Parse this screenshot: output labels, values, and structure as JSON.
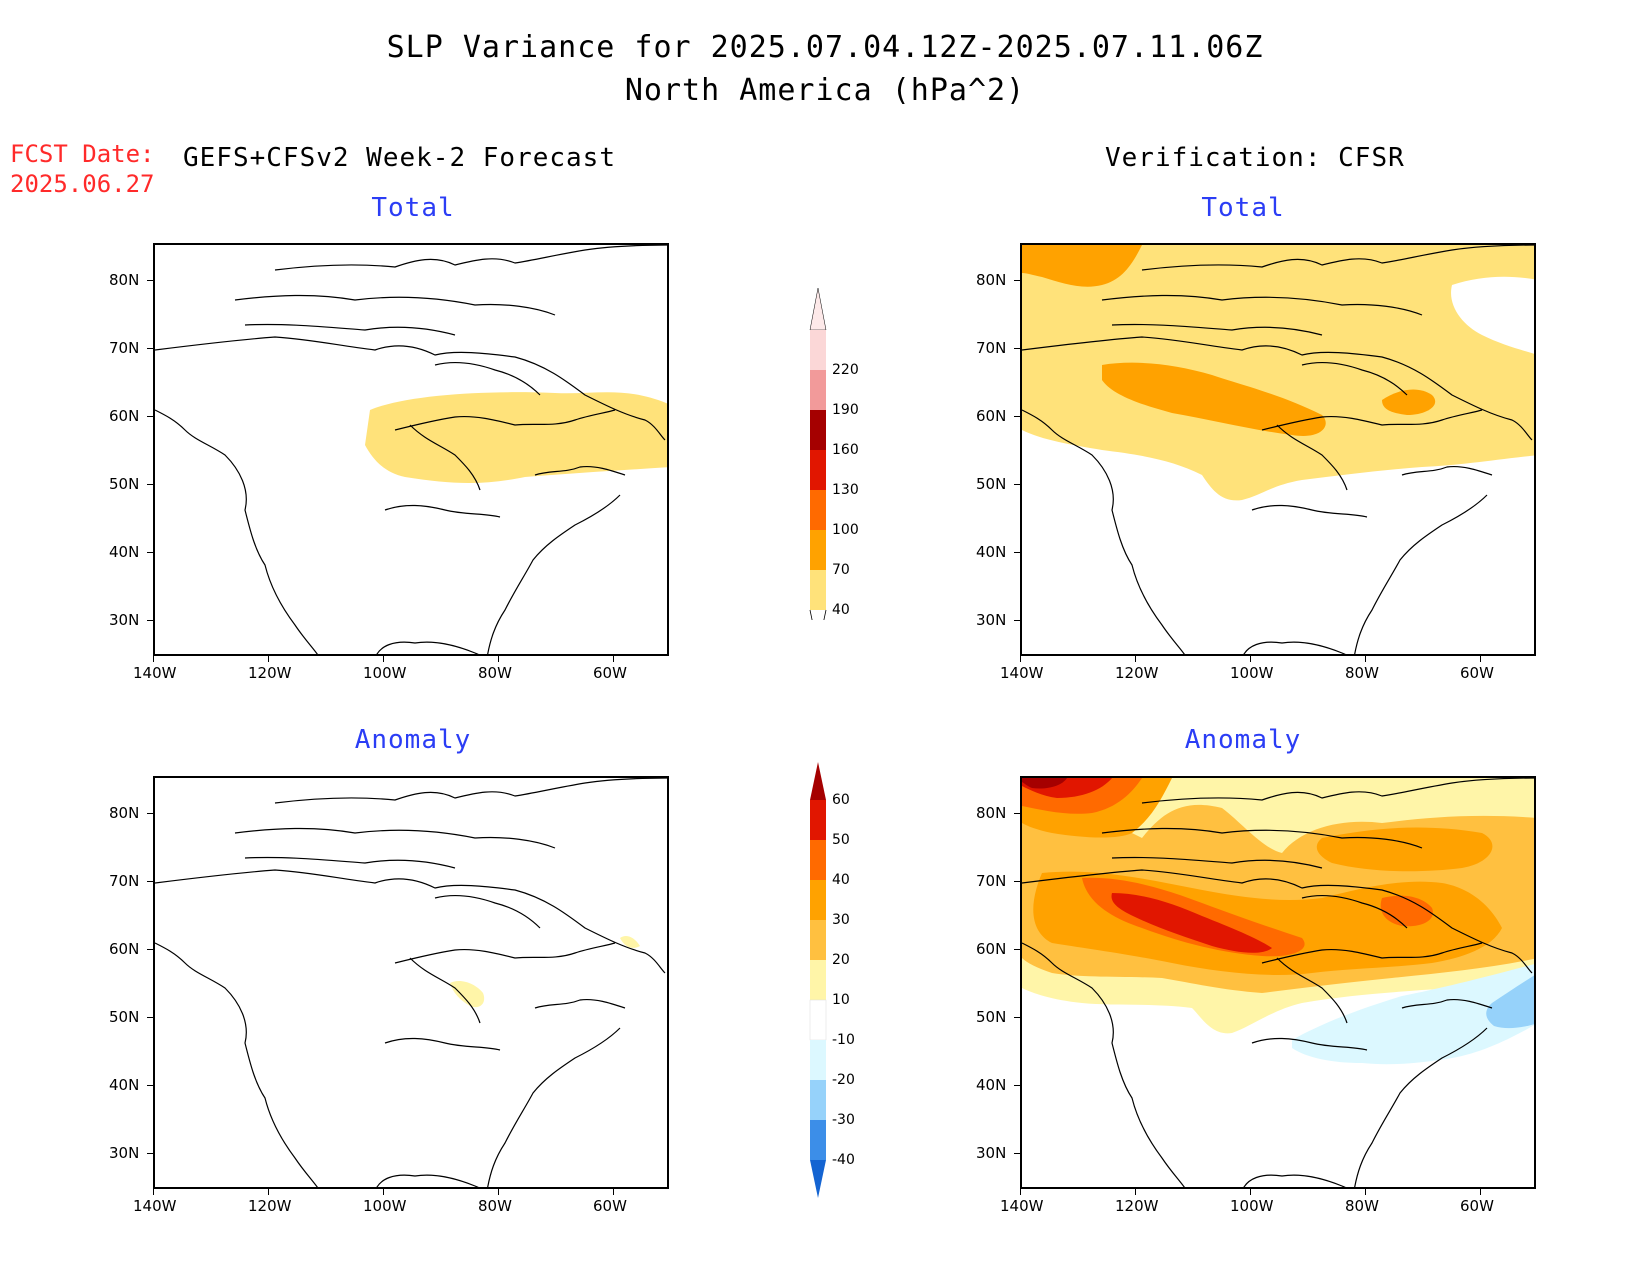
{
  "header": {
    "title_line1": "SLP Variance for 2025.07.04.12Z-2025.07.11.06Z",
    "title_line2": "North America (hPa^2)",
    "fcst_label": "FCST Date:",
    "fcst_date": "2025.06.27",
    "left_column_title": "GEFS+CFSv2 Week-2 Forecast",
    "right_column_title": "Verification: CFSR"
  },
  "panels": {
    "fcst_total_title": "Total",
    "fcst_anom_title": "Anomaly",
    "verif_total_title": "Total",
    "verif_anom_title": "Anomaly"
  },
  "axes": {
    "lat_labels": [
      "80N",
      "70N",
      "60N",
      "50N",
      "40N",
      "30N"
    ],
    "lon_labels": [
      "140W",
      "120W",
      "100W",
      "80W",
      "60W"
    ]
  },
  "total_colorbar": {
    "labels": [
      "220",
      "190",
      "160",
      "130",
      "100",
      "70",
      "40"
    ],
    "colors": [
      "#fbd7d7",
      "#f29a9a",
      "#a50000",
      "#e11600",
      "#ff6a00",
      "#ffa200",
      "#ffe27a"
    ]
  },
  "anomaly_colorbar": {
    "labels": [
      "60",
      "50",
      "40",
      "30",
      "20",
      "10",
      "-10",
      "-20",
      "-30",
      "-40"
    ],
    "colors": [
      "#a50000",
      "#e11600",
      "#ff6a00",
      "#ffa200",
      "#ffc040",
      "#fff5a8",
      "#ffffff",
      "#dcf8ff",
      "#96d2fa",
      "#3c8ee8",
      "#1464d2"
    ]
  }
}
